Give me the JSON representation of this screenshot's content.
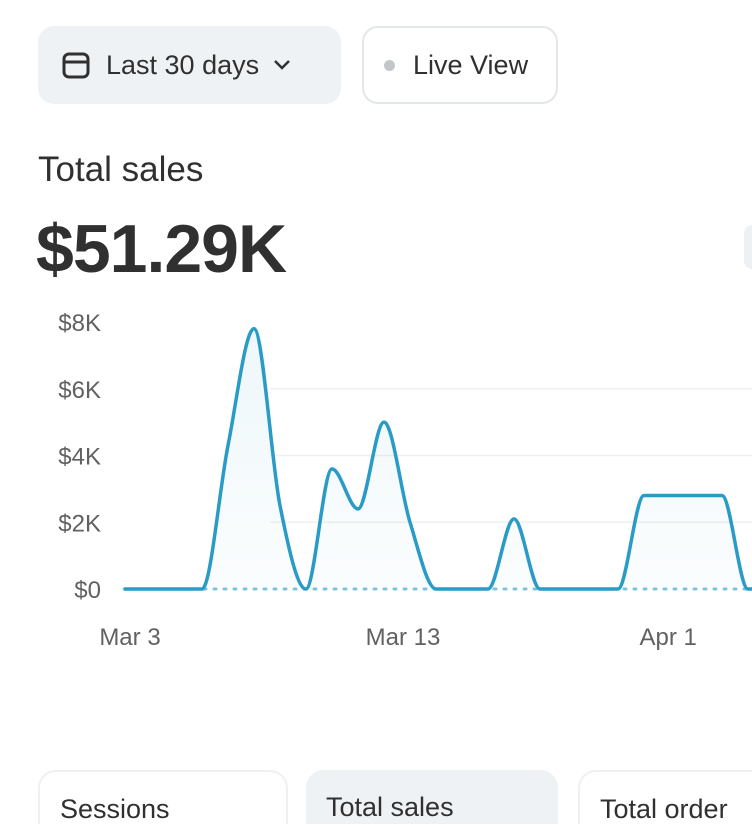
{
  "filters": {
    "range_label": "Last 30 days",
    "live_label": "Live View"
  },
  "metric": {
    "label": "Total sales",
    "value": "$51.29K"
  },
  "colors": {
    "line": "#2a9bc6",
    "grid": "#eef0f2",
    "baseline": "#7fc3dc",
    "accent_bg": "#eef2f5"
  },
  "chart_data": {
    "type": "line",
    "title": "Total sales",
    "y_ticks": [
      "$8K",
      "$6K",
      "$4K",
      "$2K",
      "$0"
    ],
    "y_tick_values": [
      8000,
      6000,
      4000,
      2000,
      0
    ],
    "ylim": [
      0,
      8000
    ],
    "x_labels": [
      {
        "label": "Mar 3",
        "day": 0
      },
      {
        "label": "Mar 13",
        "day": 10.5
      },
      {
        "label": "Apr 1",
        "day": 20.7
      }
    ],
    "series": [
      {
        "name": "Total sales",
        "points": [
          [
            0,
            0
          ],
          [
            3,
            0
          ],
          [
            4,
            4300
          ],
          [
            5,
            7800
          ],
          [
            6,
            2500
          ],
          [
            7,
            0
          ],
          [
            8,
            3600
          ],
          [
            9,
            2400
          ],
          [
            10,
            5000
          ],
          [
            11,
            2000
          ],
          [
            12,
            0
          ],
          [
            14,
            0
          ],
          [
            15,
            2100
          ],
          [
            16,
            0
          ],
          [
            19,
            0
          ],
          [
            20,
            2800
          ],
          [
            23,
            2800
          ],
          [
            24,
            0
          ],
          [
            26,
            0
          ]
        ]
      }
    ]
  },
  "tiles": [
    {
      "label": "Sessions"
    },
    {
      "label": "Total sales"
    },
    {
      "label": "Total order"
    }
  ]
}
